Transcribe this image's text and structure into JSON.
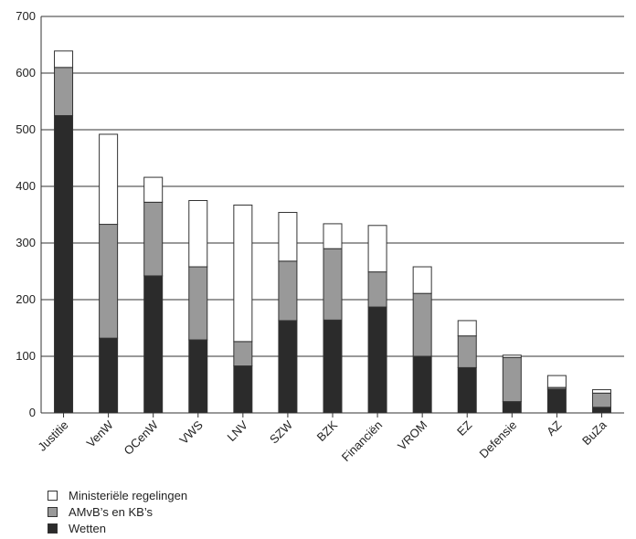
{
  "chart_data": {
    "type": "bar",
    "stacked": true,
    "title": "",
    "xlabel": "",
    "ylabel": "",
    "ylim": [
      0,
      700
    ],
    "yticks": [
      0,
      100,
      200,
      300,
      400,
      500,
      600,
      700
    ],
    "grid": true,
    "legend_position": "bottom-left",
    "categories": [
      "Justitie",
      "VenW",
      "OCenW",
      "VWS",
      "LNV",
      "SZW",
      "BZK",
      "Financiën",
      "VROM",
      "EZ",
      "Defensie",
      "AZ",
      "BuZa"
    ],
    "series": [
      {
        "name": "Wetten",
        "color": "#2b2b2b",
        "values": [
          525,
          132,
          242,
          129,
          83,
          163,
          164,
          187,
          100,
          80,
          20,
          42,
          10
        ]
      },
      {
        "name": "AMvB’s en KB’s",
        "color": "#999999",
        "values": [
          85,
          201,
          130,
          129,
          43,
          105,
          126,
          62,
          111,
          56,
          78,
          3,
          25
        ]
      },
      {
        "name": "Ministeriële regelingen",
        "color": "#ffffff",
        "values": [
          29,
          159,
          44,
          117,
          241,
          86,
          44,
          82,
          47,
          27,
          4,
          21,
          6
        ]
      }
    ],
    "legend_order": [
      "Ministeriële regelingen",
      "AMvB’s en KB’s",
      "Wetten"
    ]
  }
}
